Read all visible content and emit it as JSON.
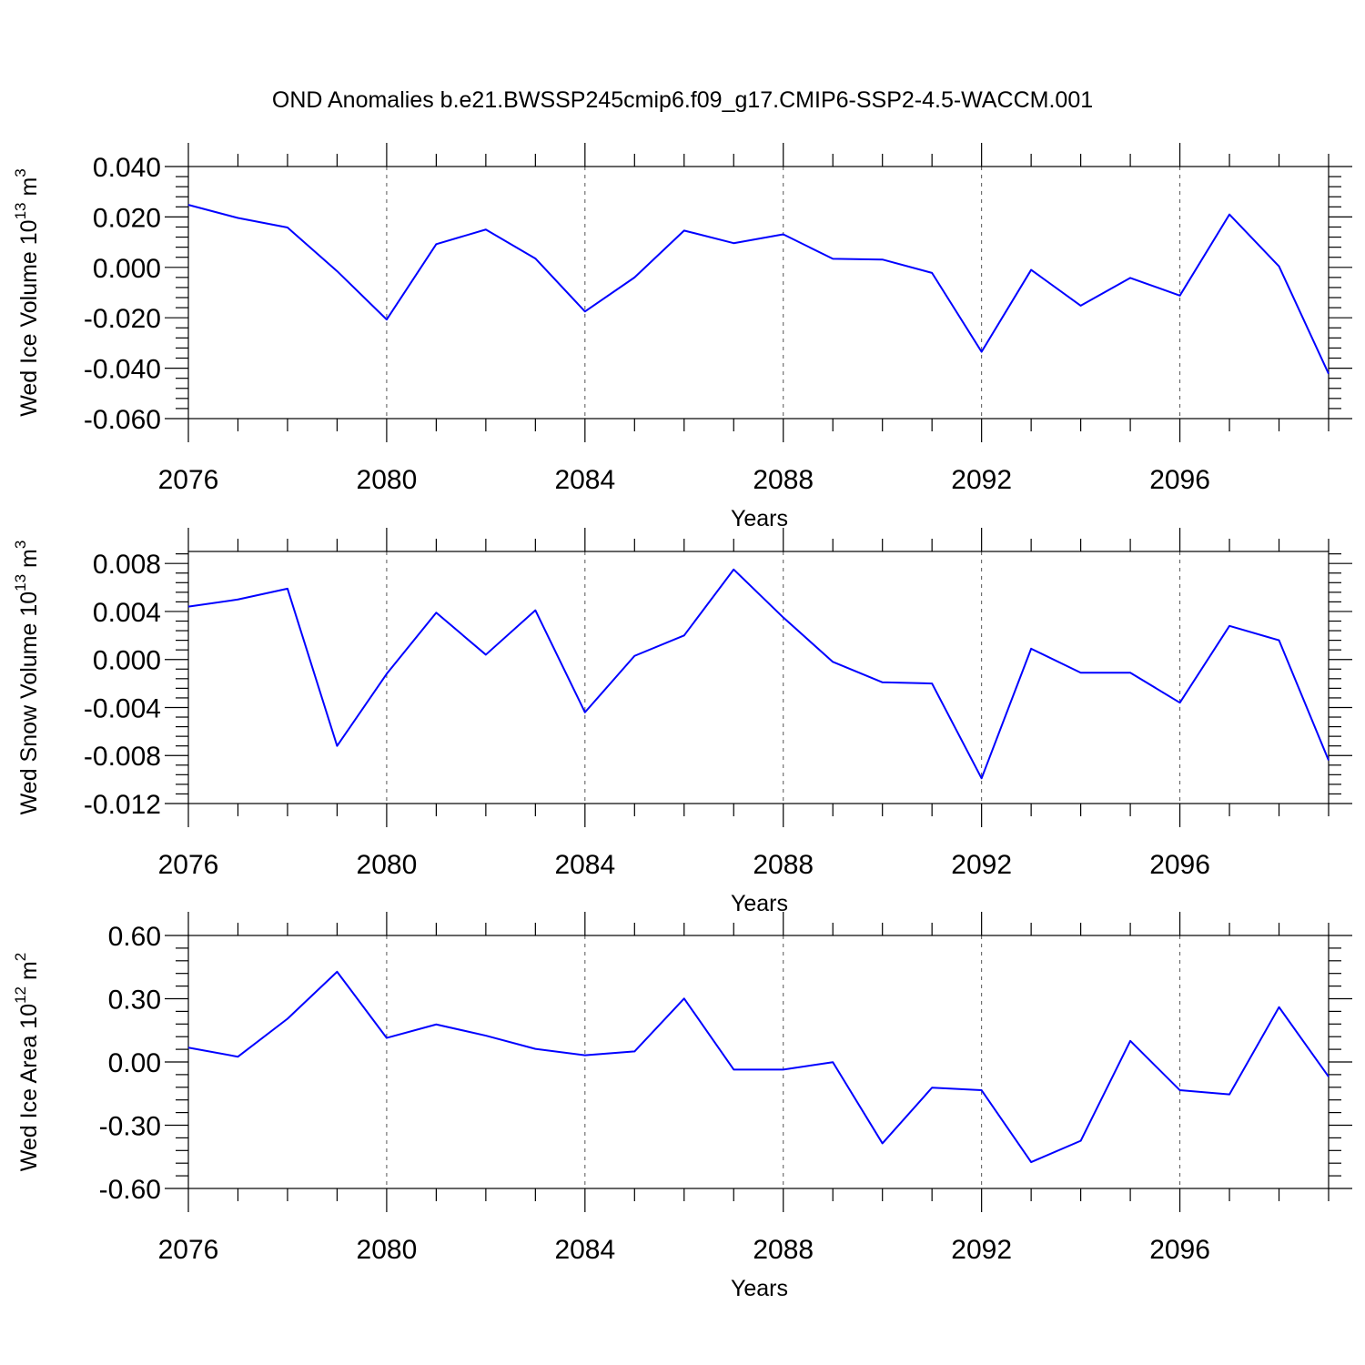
{
  "title": "OND Anomalies b.e21.BWSSP245cmip6.f09_g17.CMIP6-SSP2-4.5-WACCM.001",
  "colors": {
    "line": "#0000ff",
    "grid": "#555555",
    "axis": "#000000"
  },
  "chart_data": [
    {
      "type": "line",
      "ylabel": {
        "text": "Wed Ice Volume 10",
        "exp": "13",
        "unit": "m",
        "unit_exp": "3"
      },
      "xlabel": "Years",
      "xlim": [
        2076,
        2099
      ],
      "ylim": [
        -0.06,
        0.04
      ],
      "xticks": [
        2076,
        2080,
        2084,
        2088,
        2092,
        2096
      ],
      "xtick_labels": [
        "2076",
        "2080",
        "2084",
        "2088",
        "2092",
        "2096"
      ],
      "yticks": [
        0.04,
        0.02,
        0.0,
        -0.02,
        -0.04,
        -0.06
      ],
      "ytick_labels": [
        "0.040",
        "0.020",
        "0.000",
        "-0.020",
        "-0.040",
        "-0.060"
      ],
      "grid": "vertical dashed at major x ticks",
      "x": [
        2076,
        2077,
        2078,
        2079,
        2080,
        2081,
        2082,
        2083,
        2084,
        2085,
        2086,
        2087,
        2088,
        2089,
        2090,
        2091,
        2092,
        2093,
        2094,
        2095,
        2096,
        2097,
        2098,
        2099
      ],
      "values": [
        0.0248,
        0.0196,
        0.0158,
        -0.0015,
        -0.0207,
        0.0092,
        0.015,
        0.0035,
        -0.0175,
        -0.004,
        0.0146,
        0.0096,
        0.0131,
        0.0034,
        0.0031,
        -0.0022,
        -0.0335,
        -0.001,
        -0.0152,
        -0.0042,
        -0.0112,
        0.021,
        0.0004,
        -0.0422
      ]
    },
    {
      "type": "line",
      "ylabel": {
        "text": "Wed Snow Volume 10",
        "exp": "13",
        "unit": "m",
        "unit_exp": "3"
      },
      "xlabel": "Years",
      "xlim": [
        2076,
        2099
      ],
      "ylim": [
        -0.012,
        0.009
      ],
      "xticks": [
        2076,
        2080,
        2084,
        2088,
        2092,
        2096
      ],
      "xtick_labels": [
        "2076",
        "2080",
        "2084",
        "2088",
        "2092",
        "2096"
      ],
      "yticks": [
        0.008,
        0.004,
        0.0,
        -0.004,
        -0.008,
        -0.012
      ],
      "ytick_labels": [
        "0.008",
        "0.004",
        "0.000",
        "-0.004",
        "-0.008",
        "-0.012"
      ],
      "grid": "vertical dashed at major x ticks",
      "x": [
        2076,
        2077,
        2078,
        2079,
        2080,
        2081,
        2082,
        2083,
        2084,
        2085,
        2086,
        2087,
        2088,
        2089,
        2090,
        2091,
        2092,
        2093,
        2094,
        2095,
        2096,
        2097,
        2098,
        2099
      ],
      "values": [
        0.0044,
        0.005,
        0.0059,
        -0.0072,
        -0.0012,
        0.0039,
        0.0004,
        0.0041,
        -0.0044,
        0.0003,
        0.002,
        0.0075,
        0.0035,
        -0.0002,
        -0.0019,
        -0.002,
        -0.0099,
        0.0009,
        -0.0011,
        -0.0011,
        -0.0036,
        0.0028,
        0.0016,
        -0.0084
      ]
    },
    {
      "type": "line",
      "ylabel": {
        "text": "Wed Ice Area 10",
        "exp": "12",
        "unit": "m",
        "unit_exp": "2"
      },
      "xlabel": "Years",
      "xlim": [
        2076,
        2099
      ],
      "ylim": [
        -0.6,
        0.6
      ],
      "xticks": [
        2076,
        2080,
        2084,
        2088,
        2092,
        2096
      ],
      "xtick_labels": [
        "2076",
        "2080",
        "2084",
        "2088",
        "2092",
        "2096"
      ],
      "yticks": [
        0.6,
        0.3,
        0.0,
        -0.3,
        -0.6
      ],
      "ytick_labels": [
        "0.60",
        "0.30",
        "0.00",
        "-0.30",
        "-0.60"
      ],
      "grid": "vertical dashed at major x ticks",
      "x": [
        2076,
        2077,
        2078,
        2079,
        2080,
        2081,
        2082,
        2083,
        2084,
        2085,
        2086,
        2087,
        2088,
        2089,
        2090,
        2091,
        2092,
        2093,
        2094,
        2095,
        2096,
        2097,
        2098,
        2099
      ],
      "values": [
        0.068,
        0.025,
        0.205,
        0.428,
        0.114,
        0.178,
        0.125,
        0.062,
        0.032,
        0.05,
        0.301,
        -0.036,
        -0.036,
        -0.001,
        -0.386,
        -0.122,
        -0.134,
        -0.475,
        -0.374,
        0.1,
        -0.134,
        -0.154,
        0.26,
        -0.07
      ]
    }
  ]
}
